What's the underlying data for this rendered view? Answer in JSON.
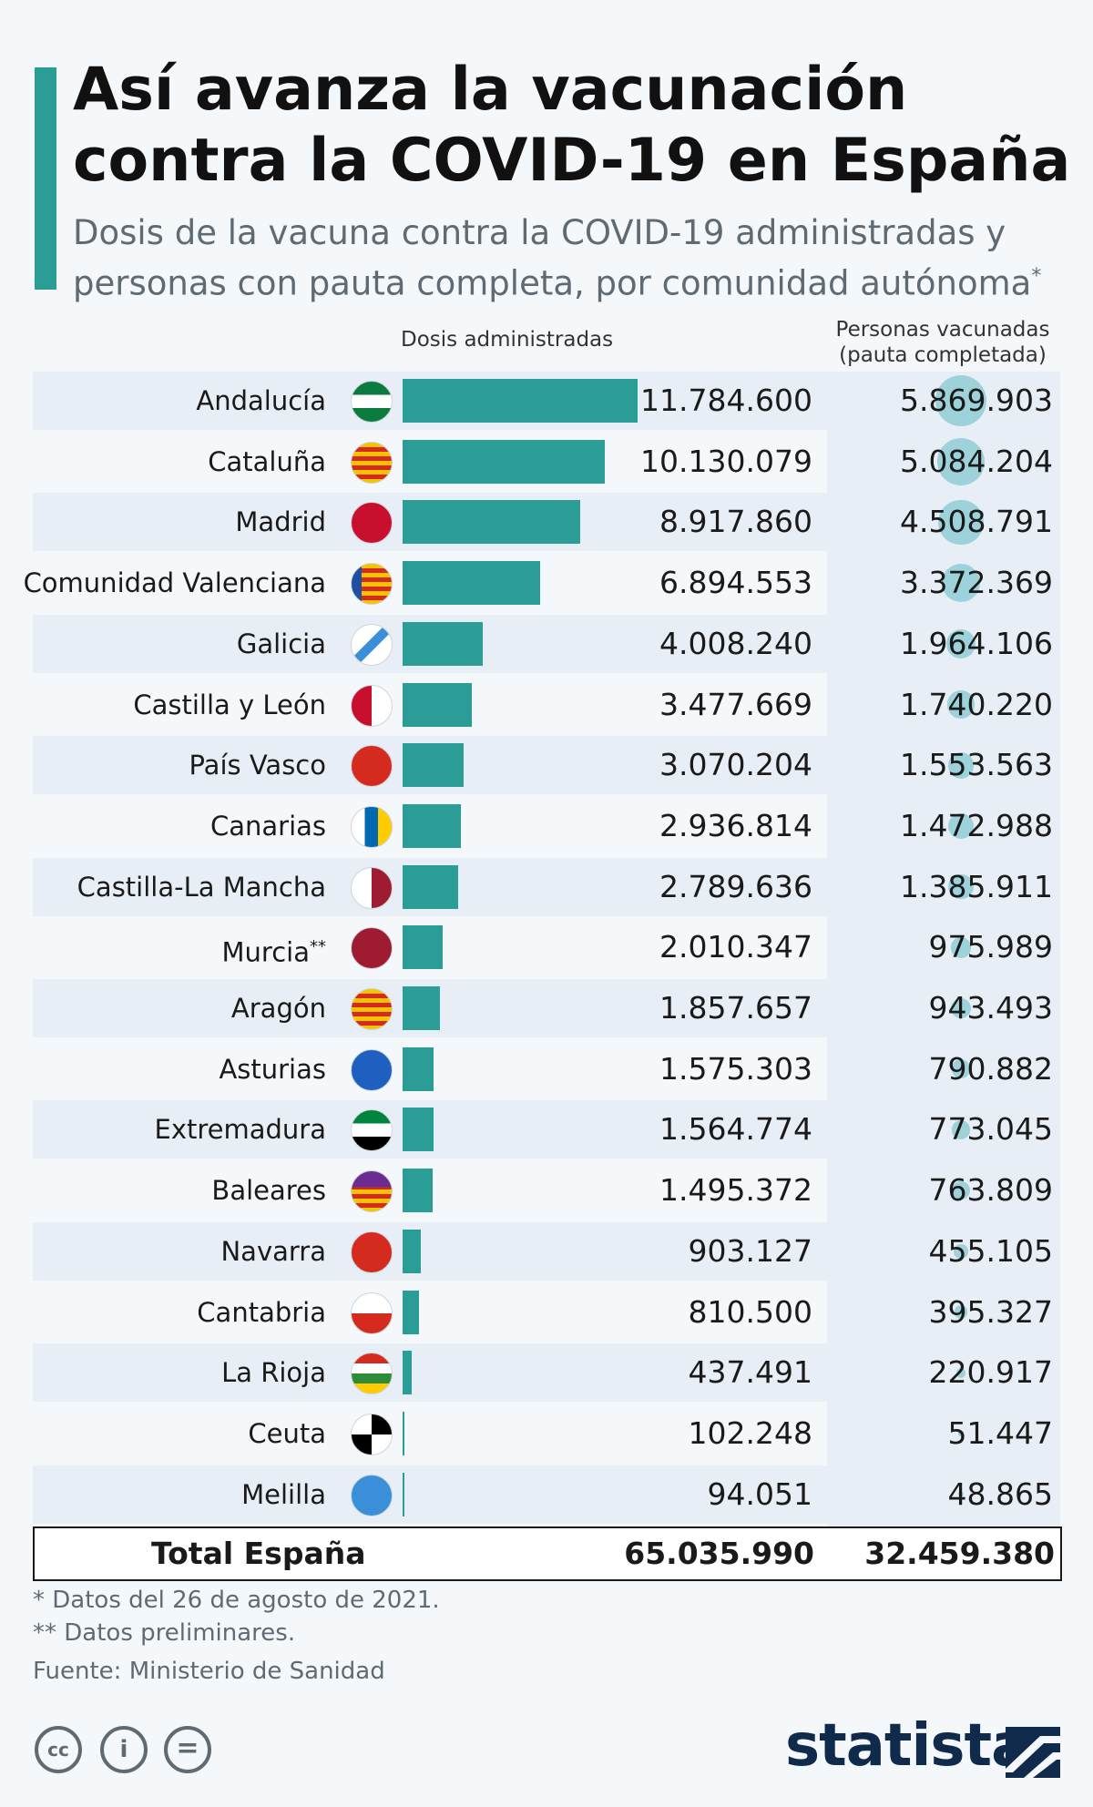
{
  "title": "Así avanza la vacunación contra la COVID-19 en España",
  "subtitle": "Dosis de la vacuna contra la COVID-19 administradas y personas con pauta completa, por comunidad autónoma",
  "subtitle_mark": "*",
  "col_dosis": "Dosis administradas",
  "col_personas_1": "Personas vacunadas",
  "col_personas_2": "(pauta completada)",
  "colors": {
    "accent": "#2a9d97",
    "bubble": "#7fc6d0",
    "band": "#e8eef5",
    "brand": "#0f2a4a"
  },
  "chart_data": {
    "type": "bar",
    "title": "Así avanza la vacunación contra la COVID-19 en España",
    "orientation": "horizontal",
    "categories": [
      "Andalucía",
      "Cataluña",
      "Madrid",
      "Comunidad Valenciana",
      "Galicia",
      "Castilla y León",
      "País Vasco",
      "Canarias",
      "Castilla-La Mancha",
      "Murcia",
      "Aragón",
      "Asturias",
      "Extremadura",
      "Baleares",
      "Navarra",
      "Cantabria",
      "La Rioja",
      "Ceuta",
      "Melilla"
    ],
    "category_marks": [
      "",
      "",
      "",
      "",
      "",
      "",
      "",
      "",
      "",
      "**",
      "",
      "",
      "",
      "",
      "",
      "",
      "",
      "",
      ""
    ],
    "series": [
      {
        "name": "Dosis administradas",
        "values": [
          11784600,
          10130079,
          8917860,
          6894553,
          4008240,
          3477669,
          3070204,
          2936814,
          2789636,
          2010347,
          1857657,
          1575303,
          1564774,
          1495372,
          903127,
          810500,
          437491,
          102248,
          94051
        ],
        "labels": [
          "11.784.600",
          "10.130.079",
          "8.917.860",
          "6.894.553",
          "4.008.240",
          "3.477.669",
          "3.070.204",
          "2.936.814",
          "2.789.636",
          "2.010.347",
          "1.857.657",
          "1.575.303",
          "1.564.774",
          "1.495.372",
          "903.127",
          "810.500",
          "437.491",
          "102.248",
          "94.051"
        ]
      },
      {
        "name": "Personas vacunadas (pauta completada)",
        "values": [
          5869903,
          5084204,
          4508791,
          3372369,
          1964106,
          1740220,
          1553563,
          1472988,
          1385911,
          975989,
          943493,
          790882,
          773045,
          763809,
          455105,
          395327,
          220917,
          51447,
          48865
        ],
        "labels": [
          "5.869.903",
          "5.084.204",
          "4.508.791",
          "3.372.369",
          "1.964.106",
          "1.740.220",
          "1.553.563",
          "1.472.988",
          "1.385.911",
          "975.989",
          "943.493",
          "790.882",
          "773.045",
          "763.809",
          "455.105",
          "395.327",
          "220.917",
          "51.447",
          "48.865"
        ]
      }
    ],
    "total": {
      "label": "Total España",
      "dosis": "65.035.990",
      "personas": "32.459.380"
    }
  },
  "flags": [
    "andalucia-flag-icon",
    "cataluna-flag-icon",
    "madrid-flag-icon",
    "valenciana-flag-icon",
    "galicia-flag-icon",
    "castilla-leon-flag-icon",
    "pais-vasco-flag-icon",
    "canarias-flag-icon",
    "castilla-la-mancha-flag-icon",
    "murcia-flag-icon",
    "aragon-flag-icon",
    "asturias-flag-icon",
    "extremadura-flag-icon",
    "baleares-flag-icon",
    "navarra-flag-icon",
    "cantabria-flag-icon",
    "la-rioja-flag-icon",
    "ceuta-flag-icon",
    "melilla-flag-icon"
  ],
  "notes": {
    "note1": "*   Datos del 26 de agosto de 2021.",
    "note2": "** Datos preliminares.",
    "source": "Fuente: Ministerio de Sanidad"
  },
  "license": {
    "cc": "cc",
    "by": "i",
    "nd": "="
  },
  "brand": "statista"
}
